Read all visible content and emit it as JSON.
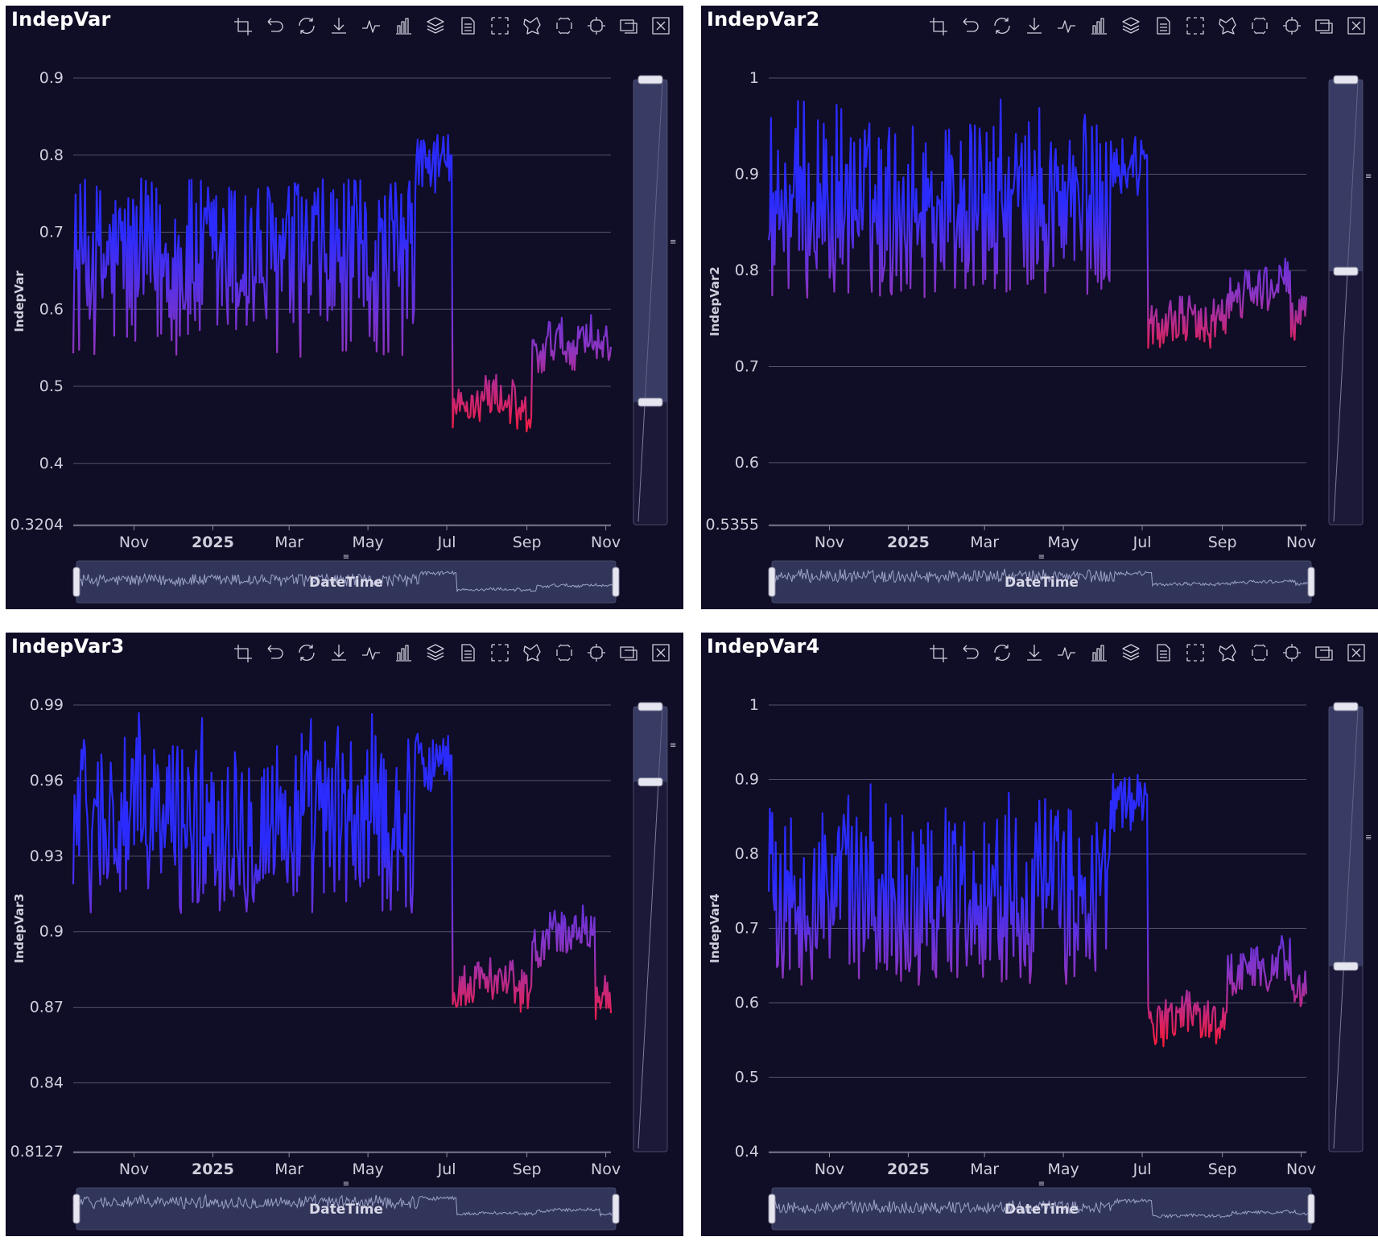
{
  "toolbar_icons": [
    "crop-icon",
    "undo-icon",
    "refresh-icon",
    "download-icon",
    "line-chart-icon",
    "bar-chart-icon",
    "stack-icon",
    "data-view-icon",
    "rect-select-icon",
    "lasso-select-icon",
    "keep-select-icon",
    "clear-select-icon",
    "zoom-area-icon",
    "zoom-reset-icon"
  ],
  "colors": {
    "background": "#100d26",
    "grid": "#53536a",
    "axis_text": "#cfcfdc",
    "series_high": "#2b2bff",
    "series_low": "#ff1a33"
  },
  "x_tick_labels": [
    "Nov",
    "2025",
    "Mar",
    "May",
    "Jul",
    "Sep",
    "Nov"
  ],
  "datazoom_label": "DateTime",
  "chart_data": [
    {
      "type": "line",
      "title": "IndepVar",
      "ylabel": "IndepVar",
      "xlabel": "",
      "slider_label": "DateTime",
      "x_range": [
        "2024-09-15",
        "2025-11-05"
      ],
      "ylim": [
        0.3204,
        0.9
      ],
      "y_ticks": [
        "0.9",
        "0.8",
        "0.7",
        "0.6",
        "0.5",
        "0.4",
        "0.3204"
      ],
      "y_tick_values": [
        0.9,
        0.8,
        0.7,
        0.6,
        0.5,
        0.4,
        0.3204
      ],
      "visual_map_range": [
        0.43,
        0.7
      ],
      "vslider_range": [
        0.48,
        0.9
      ],
      "grid": true,
      "x_dates": [
        "2024-09-15",
        "2024-10-15",
        "2024-11-15",
        "2024-12-15",
        "2025-01-15",
        "2025-02-15",
        "2025-03-15",
        "2025-04-15",
        "2025-05-15",
        "2025-06-15",
        "2025-06-30",
        "2025-07-05",
        "2025-07-08",
        "2025-07-15",
        "2025-08-01",
        "2025-08-15",
        "2025-09-01",
        "2025-09-15",
        "2025-10-01",
        "2025-10-15",
        "2025-11-01",
        "2025-11-05"
      ],
      "y_values": [
        0.66,
        0.65,
        0.66,
        0.64,
        0.67,
        0.65,
        0.66,
        0.64,
        0.66,
        0.65,
        0.79,
        0.8,
        0.47,
        0.48,
        0.49,
        0.48,
        0.46,
        0.54,
        0.56,
        0.55,
        0.57,
        0.55
      ]
    },
    {
      "type": "line",
      "title": "IndepVar2",
      "ylabel": "IndepVar2",
      "xlabel": "",
      "slider_label": "DateTime",
      "x_range": [
        "2024-09-15",
        "2025-11-05"
      ],
      "ylim": [
        0.5355,
        1.0
      ],
      "y_ticks": [
        "1",
        "0.9",
        "0.8",
        "0.7",
        "0.6",
        "0.5355"
      ],
      "y_tick_values": [
        1.0,
        0.9,
        0.8,
        0.7,
        0.6,
        0.5355
      ],
      "visual_map_range": [
        0.7,
        0.87
      ],
      "vslider_range": [
        0.8,
        1.0
      ],
      "grid": true,
      "x_dates": [
        "2024-09-15",
        "2024-10-15",
        "2024-11-15",
        "2024-12-15",
        "2025-01-15",
        "2025-02-15",
        "2025-03-15",
        "2025-04-15",
        "2025-05-15",
        "2025-06-15",
        "2025-06-30",
        "2025-07-05",
        "2025-07-08",
        "2025-07-15",
        "2025-08-01",
        "2025-08-15",
        "2025-09-01",
        "2025-09-15",
        "2025-10-01",
        "2025-10-15",
        "2025-11-01",
        "2025-11-05"
      ],
      "y_values": [
        0.86,
        0.86,
        0.87,
        0.86,
        0.86,
        0.87,
        0.86,
        0.86,
        0.87,
        0.86,
        0.91,
        0.92,
        0.74,
        0.75,
        0.75,
        0.74,
        0.75,
        0.77,
        0.78,
        0.78,
        0.79,
        0.75
      ]
    },
    {
      "type": "line",
      "title": "IndepVar3",
      "ylabel": "IndepVar3",
      "xlabel": "",
      "slider_label": "DateTime",
      "x_range": [
        "2024-09-15",
        "2025-11-05"
      ],
      "ylim": [
        0.8127,
        0.99
      ],
      "y_ticks": [
        "0.99",
        "0.96",
        "0.93",
        "0.9",
        "0.87",
        "0.84",
        "0.8127"
      ],
      "y_tick_values": [
        0.99,
        0.96,
        0.93,
        0.9,
        0.87,
        0.84,
        0.8127
      ],
      "visual_map_range": [
        0.86,
        0.935
      ],
      "vslider_range": [
        0.96,
        0.99
      ],
      "grid": true,
      "x_dates": [
        "2024-09-15",
        "2024-10-15",
        "2024-11-15",
        "2024-12-15",
        "2025-01-15",
        "2025-02-15",
        "2025-03-15",
        "2025-04-15",
        "2025-05-15",
        "2025-06-15",
        "2025-06-30",
        "2025-07-05",
        "2025-07-08",
        "2025-07-15",
        "2025-08-01",
        "2025-08-15",
        "2025-09-01",
        "2025-09-15",
        "2025-10-01",
        "2025-10-15",
        "2025-11-01",
        "2025-11-05"
      ],
      "y_values": [
        0.943,
        0.942,
        0.944,
        0.941,
        0.943,
        0.942,
        0.944,
        0.941,
        0.943,
        0.942,
        0.968,
        0.97,
        0.878,
        0.88,
        0.882,
        0.88,
        0.877,
        0.893,
        0.9,
        0.899,
        0.902,
        0.874
      ]
    },
    {
      "type": "line",
      "title": "IndepVar4",
      "ylabel": "IndepVar4",
      "xlabel": "",
      "slider_label": "DateTime",
      "x_range": [
        "2024-09-15",
        "2025-11-05"
      ],
      "ylim": [
        0.4,
        1.0
      ],
      "y_ticks": [
        "1",
        "0.9",
        "0.8",
        "0.7",
        "0.6",
        "0.5",
        "0.4"
      ],
      "y_tick_values": [
        1.0,
        0.9,
        0.8,
        0.7,
        0.6,
        0.5,
        0.4
      ],
      "visual_map_range": [
        0.54,
        0.76
      ],
      "vslider_range": [
        0.65,
        1.0
      ],
      "grid": true,
      "x_dates": [
        "2024-09-15",
        "2024-10-15",
        "2024-11-15",
        "2024-12-15",
        "2025-01-15",
        "2025-02-15",
        "2025-03-15",
        "2025-04-15",
        "2025-05-15",
        "2025-06-15",
        "2025-06-30",
        "2025-07-05",
        "2025-07-08",
        "2025-07-15",
        "2025-08-01",
        "2025-08-15",
        "2025-09-01",
        "2025-09-15",
        "2025-10-01",
        "2025-10-15",
        "2025-11-01",
        "2025-11-05"
      ],
      "y_values": [
        0.75,
        0.74,
        0.75,
        0.73,
        0.76,
        0.74,
        0.75,
        0.73,
        0.75,
        0.74,
        0.87,
        0.88,
        0.57,
        0.58,
        0.59,
        0.58,
        0.57,
        0.64,
        0.65,
        0.64,
        0.66,
        0.62
      ]
    }
  ]
}
